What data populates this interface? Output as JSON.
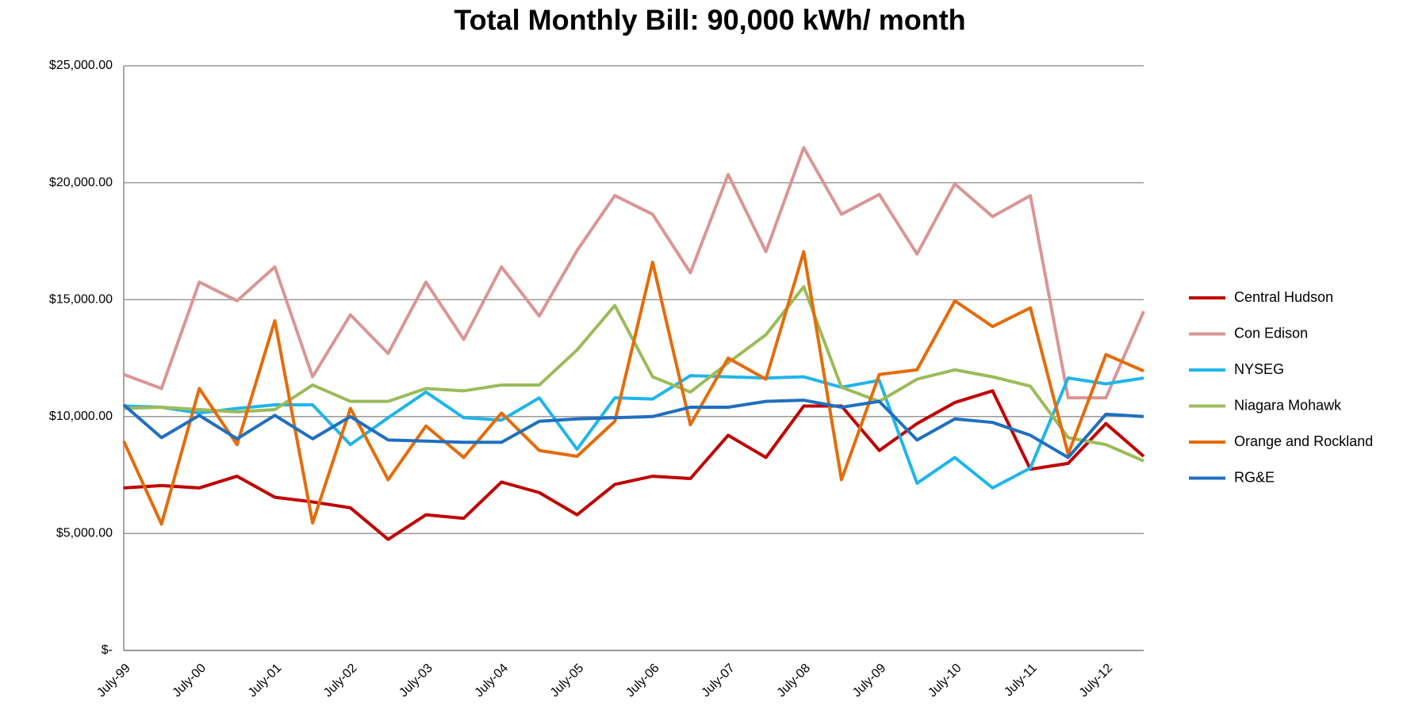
{
  "chart_data": {
    "type": "line",
    "title": "Total Monthly Bill: 90,000 kWh/ month",
    "categories": [
      "July-99",
      null,
      "July-00",
      null,
      "July-01",
      null,
      "July-02",
      null,
      "July-03",
      null,
      "July-04",
      null,
      "July-05",
      null,
      "July-06",
      null,
      "July-07",
      null,
      "July-08",
      null,
      "July-09",
      null,
      "July-10",
      null,
      "July-11",
      null,
      "July-12",
      null
    ],
    "series": [
      {
        "name": "Central Hudson",
        "color": "#c00000",
        "values": [
          6950,
          7050,
          6950,
          7450,
          6550,
          6350,
          6100,
          4750,
          5800,
          5650,
          7200,
          6750,
          5800,
          7100,
          7450,
          7350,
          9200,
          8250,
          10450,
          10450,
          8550,
          9700,
          10600,
          11100,
          7750,
          8000,
          9700,
          8300
        ]
      },
      {
        "name": "Con Edison",
        "color": "#d99694",
        "values": [
          11800,
          11200,
          15750,
          14950,
          16400,
          11700,
          14350,
          12700,
          15750,
          13300,
          16400,
          14300,
          17100,
          19450,
          18650,
          16150,
          20350,
          17050,
          21500,
          18650,
          19500,
          16950,
          19950,
          18550,
          19450,
          10800,
          10800,
          14500
        ]
      },
      {
        "name": "NYSEG",
        "color": "#1fb5ea",
        "values": [
          10450,
          10400,
          10150,
          10350,
          10500,
          10500,
          8800,
          9950,
          11050,
          9950,
          9850,
          10800,
          8600,
          10800,
          10750,
          11750,
          11700,
          11650,
          11700,
          11250,
          11550,
          7150,
          8250,
          6950,
          7800,
          11650,
          11400,
          11650
        ]
      },
      {
        "name": "Niagara Mohawk",
        "color": "#9bbb59",
        "values": [
          10350,
          10400,
          10300,
          10200,
          10300,
          11350,
          10650,
          10650,
          11200,
          11100,
          11350,
          11350,
          12850,
          14750,
          11700,
          11050,
          12300,
          13500,
          15550,
          11250,
          10650,
          11600,
          12000,
          11700,
          11300,
          9100,
          8800,
          8100
        ]
      },
      {
        "name": "Orange and Rockland",
        "color": "#e46c0a",
        "values": [
          8950,
          5400,
          11200,
          8800,
          14100,
          5450,
          10350,
          7300,
          9600,
          8250,
          10150,
          8550,
          8300,
          9800,
          16600,
          9650,
          12500,
          11600,
          17050,
          7300,
          11800,
          12000,
          14950,
          13850,
          14650,
          8400,
          12650,
          11950
        ]
      },
      {
        "name": "RG&E",
        "color": "#1f6fbf",
        "values": [
          10500,
          9100,
          10050,
          9050,
          10050,
          9050,
          10000,
          9000,
          8950,
          8900,
          8900,
          9800,
          9900,
          9950,
          10000,
          10400,
          10400,
          10650,
          10700,
          10400,
          10650,
          9000,
          9900,
          9750,
          9200,
          8250,
          10100,
          10000
        ]
      }
    ],
    "ylim": [
      0,
      25000
    ],
    "yticks": [
      {
        "value": 0,
        "label": "$-"
      },
      {
        "value": 5000,
        "label": "$5,000.00"
      },
      {
        "value": 10000,
        "label": "$10,000.00"
      },
      {
        "value": 15000,
        "label": "$15,000.00"
      },
      {
        "value": 20000,
        "label": "$20,000.00"
      },
      {
        "value": 25000,
        "label": "$25,000.00"
      }
    ],
    "grid": true,
    "legend": "right"
  }
}
